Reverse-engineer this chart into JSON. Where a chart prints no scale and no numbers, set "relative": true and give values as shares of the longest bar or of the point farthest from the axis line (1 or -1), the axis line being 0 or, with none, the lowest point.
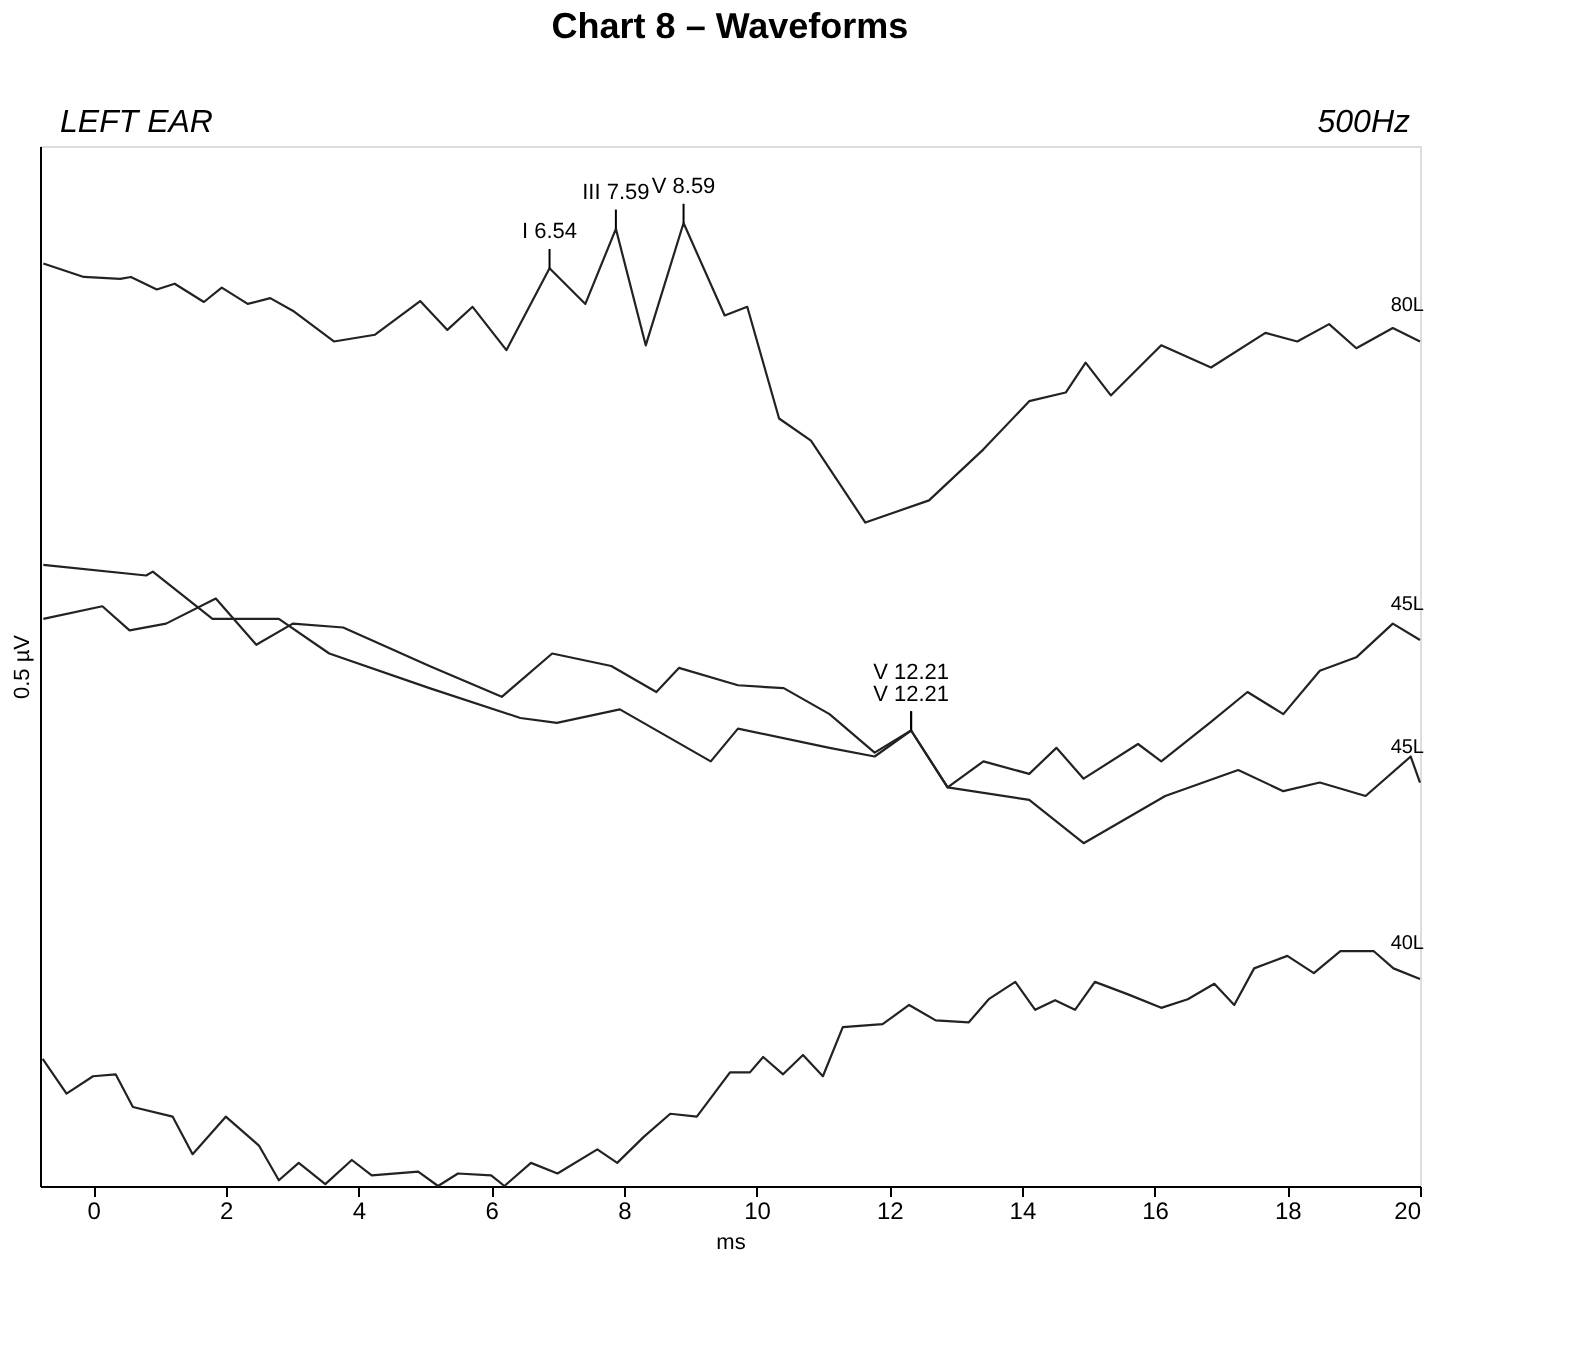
{
  "chart_data": {
    "type": "line",
    "title": "Chart 8 – Waveforms",
    "xlabel": "ms",
    "ylabel": "0.5 µV",
    "relative": true,
    "tick_labels": "x",
    "grid": false,
    "marker": "none",
    "line_style": "solid",
    "xlim": [
      -0.8,
      20
    ],
    "xticks": [
      0,
      2,
      4,
      6,
      8,
      10,
      12,
      14,
      16,
      18,
      20
    ],
    "annotations": [
      "LEFT EAR",
      "500Hz",
      {
        "text": "I 6.54",
        "x": 6.88,
        "y": 0.953
      },
      {
        "text": "III 7.59",
        "x": 7.88,
        "y": 0.994
      },
      {
        "text": "V 8.59",
        "x": 8.9,
        "y": 1.0
      },
      {
        "text": "V 12.21",
        "x": 12.33,
        "y": 0.473
      },
      {
        "text": "V 12.21",
        "x": 12.33,
        "y": 0.473
      }
    ],
    "series": [
      {
        "name": "80L",
        "color": "#222222",
        "x": [
          -0.75,
          -0.14,
          0.41,
          0.57,
          0.96,
          1.23,
          1.67,
          1.94,
          2.33,
          2.67,
          3.01,
          3.63,
          4.25,
          4.93,
          5.34,
          5.72,
          6.23,
          6.88,
          7.42,
          7.88,
          8.33,
          8.9,
          9.52,
          9.86,
          10.34,
          10.82,
          11.64,
          12.6,
          13.42,
          14.11,
          14.66,
          14.96,
          15.34,
          16.1,
          16.85,
          17.67,
          18.15,
          18.63,
          19.04,
          19.59,
          20.0
        ],
        "values": [
          0.958,
          0.944,
          0.942,
          0.944,
          0.931,
          0.937,
          0.918,
          0.933,
          0.916,
          0.922,
          0.909,
          0.877,
          0.884,
          0.919,
          0.889,
          0.913,
          0.868,
          0.953,
          0.916,
          0.994,
          0.873,
          1.0,
          0.904,
          0.913,
          0.797,
          0.774,
          0.689,
          0.712,
          0.765,
          0.815,
          0.824,
          0.855,
          0.821,
          0.873,
          0.85,
          0.886,
          0.877,
          0.895,
          0.87,
          0.891,
          0.877
        ]
      },
      {
        "name": "45L",
        "color": "#222222",
        "x": [
          -0.75,
          0.14,
          0.55,
          1.1,
          1.85,
          2.46,
          3.01,
          3.77,
          5.07,
          6.16,
          6.92,
          7.81,
          8.49,
          8.83,
          9.72,
          10.41,
          11.1,
          11.78,
          12.33,
          12.88,
          13.42,
          14.11,
          14.52,
          14.93,
          15.75,
          16.1,
          16.85,
          17.4,
          17.94,
          18.49,
          19.04,
          19.59,
          20.0
        ],
        "values": [
          0.589,
          0.602,
          0.577,
          0.584,
          0.61,
          0.562,
          0.584,
          0.58,
          0.54,
          0.508,
          0.553,
          0.54,
          0.513,
          0.538,
          0.52,
          0.517,
          0.49,
          0.45,
          0.473,
          0.414,
          0.441,
          0.428,
          0.455,
          0.423,
          0.459,
          0.441,
          0.482,
          0.513,
          0.49,
          0.535,
          0.549,
          0.584,
          0.567
        ]
      },
      {
        "name": "45L",
        "color": "#222222",
        "x": [
          -0.75,
          0.8,
          0.9,
          1.8,
          2.8,
          3.56,
          5.07,
          6.44,
          6.99,
          7.94,
          9.31,
          9.72,
          11.1,
          11.78,
          12.33,
          12.88,
          14.11,
          14.93,
          16.16,
          17.26,
          17.94,
          18.49,
          19.18,
          19.86,
          20.0
        ],
        "values": [
          0.645,
          0.634,
          0.638,
          0.589,
          0.589,
          0.553,
          0.517,
          0.486,
          0.481,
          0.495,
          0.441,
          0.475,
          0.455,
          0.446,
          0.473,
          0.414,
          0.401,
          0.356,
          0.405,
          0.432,
          0.41,
          0.419,
          0.405,
          0.446,
          0.419
        ]
      },
      {
        "name": "40L",
        "color": "#222222",
        "x": [
          -0.76,
          -0.4,
          0.0,
          0.34,
          0.6,
          1.2,
          1.5,
          2.0,
          2.5,
          2.8,
          3.1,
          3.5,
          3.9,
          4.2,
          4.9,
          5.2,
          5.5,
          6.0,
          6.2,
          6.6,
          7.0,
          7.6,
          7.9,
          8.3,
          8.7,
          9.1,
          9.6,
          9.9,
          10.1,
          10.4,
          10.7,
          11.0,
          11.3,
          11.9,
          12.3,
          12.7,
          13.2,
          13.5,
          13.9,
          14.2,
          14.5,
          14.8,
          15.1,
          15.6,
          16.1,
          16.5,
          16.9,
          17.2,
          17.5,
          18.0,
          18.4,
          18.8,
          19.3,
          19.6,
          20.0
        ],
        "values": [
          0.132,
          0.096,
          0.114,
          0.116,
          0.082,
          0.072,
          0.033,
          0.072,
          0.042,
          0.006,
          0.024,
          0.002,
          0.027,
          0.011,
          0.015,
          0.0,
          0.013,
          0.011,
          0.0,
          0.024,
          0.013,
          0.038,
          0.024,
          0.051,
          0.075,
          0.072,
          0.118,
          0.118,
          0.134,
          0.116,
          0.136,
          0.114,
          0.165,
          0.168,
          0.188,
          0.172,
          0.17,
          0.194,
          0.212,
          0.183,
          0.193,
          0.183,
          0.212,
          0.199,
          0.185,
          0.194,
          0.21,
          0.188,
          0.226,
          0.239,
          0.221,
          0.244,
          0.244,
          0.226,
          0.215
        ]
      }
    ]
  }
}
